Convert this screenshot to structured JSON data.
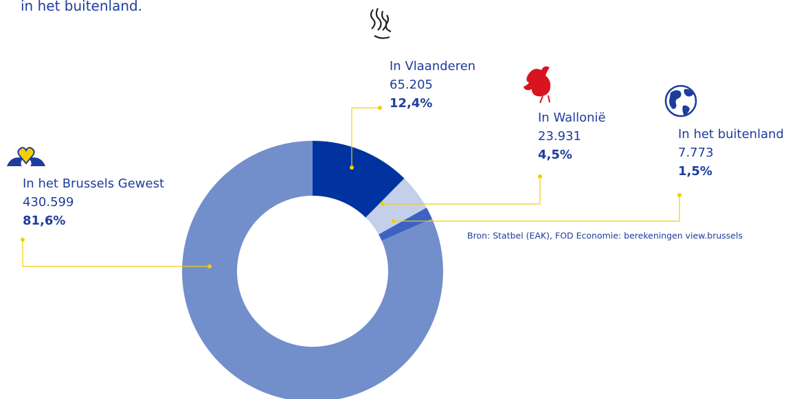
{
  "chart_data": {
    "type": "pie",
    "title": "in het buitenland.",
    "categories": [
      "In Vlaanderen",
      "In Wallonië",
      "In het buitenland",
      "In het Brussels Gewest"
    ],
    "values": [
      12.4,
      4.5,
      1.5,
      81.6
    ],
    "value_labels": [
      "12,4%",
      "4,5%",
      "1,5%",
      "81,6%"
    ],
    "counts": [
      65205,
      23931,
      7773,
      430599
    ],
    "count_labels": [
      "65.205",
      "23.931",
      "7.773",
      "430.599"
    ],
    "colors": [
      "#0033a0",
      "#c4cfea",
      "#3d62c2",
      "#728fcb"
    ],
    "source": "Bron: Statbel (EAK), FOD Economie: berekeningen view.brussels"
  }
}
